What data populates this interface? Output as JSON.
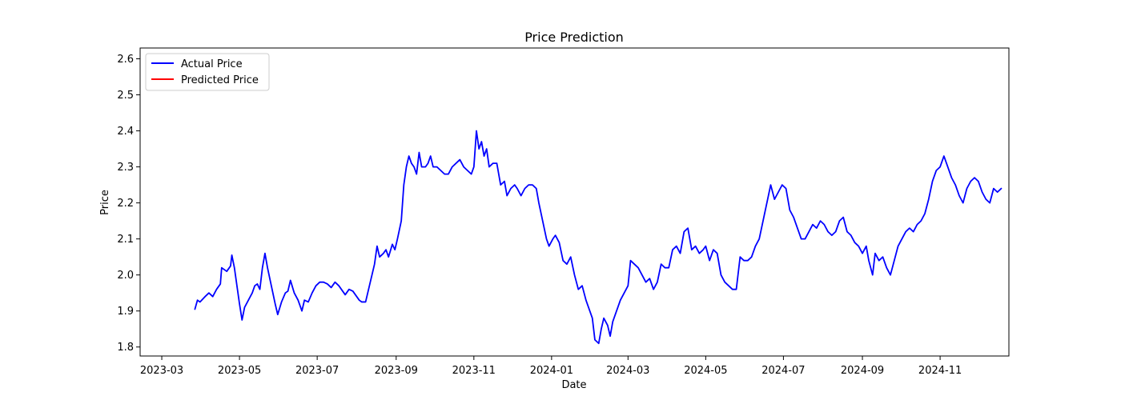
{
  "chart_data": {
    "type": "line",
    "title": "Price Prediction",
    "xlabel": "Date",
    "ylabel": "Price",
    "grid": false,
    "legend_position": "top-left",
    "xlim": [
      "2023-02-12",
      "2024-12-25"
    ],
    "ylim": [
      1.775,
      2.63
    ],
    "x_ticks": [
      "2023-03-01",
      "2023-05-01",
      "2023-07-01",
      "2023-09-01",
      "2023-11-01",
      "2024-01-01",
      "2024-03-01",
      "2024-05-01",
      "2024-07-01",
      "2024-09-01",
      "2024-11-01"
    ],
    "x_tick_labels": [
      "2023-03",
      "2023-05",
      "2023-07",
      "2023-09",
      "2023-11",
      "2024-01",
      "2024-03",
      "2024-05",
      "2024-07",
      "2024-09",
      "2024-11"
    ],
    "y_ticks": [
      1.8,
      1.9,
      2.0,
      2.1,
      2.2,
      2.3,
      2.4,
      2.5,
      2.6
    ],
    "y_tick_labels": [
      "1.8",
      "1.9",
      "2.0",
      "2.1",
      "2.2",
      "2.3",
      "2.4",
      "2.5",
      "2.6"
    ],
    "series": [
      {
        "name": "Actual Price",
        "color": "#0000ff",
        "points": [
          [
            "2023-03-27",
            1.905
          ],
          [
            "2023-03-29",
            1.93
          ],
          [
            "2023-03-31",
            1.925
          ],
          [
            "2023-04-04",
            1.94
          ],
          [
            "2023-04-07",
            1.95
          ],
          [
            "2023-04-10",
            1.94
          ],
          [
            "2023-04-13",
            1.96
          ],
          [
            "2023-04-16",
            1.975
          ],
          [
            "2023-04-17",
            2.02
          ],
          [
            "2023-04-19",
            2.015
          ],
          [
            "2023-04-21",
            2.01
          ],
          [
            "2023-04-24",
            2.025
          ],
          [
            "2023-04-25",
            2.055
          ],
          [
            "2023-04-27",
            2.02
          ],
          [
            "2023-04-29",
            1.97
          ],
          [
            "2023-05-01",
            1.92
          ],
          [
            "2023-05-03",
            1.875
          ],
          [
            "2023-05-05",
            1.91
          ],
          [
            "2023-05-08",
            1.93
          ],
          [
            "2023-05-11",
            1.95
          ],
          [
            "2023-05-13",
            1.97
          ],
          [
            "2023-05-15",
            1.975
          ],
          [
            "2023-05-17",
            1.96
          ],
          [
            "2023-05-19",
            2.02
          ],
          [
            "2023-05-21",
            2.06
          ],
          [
            "2023-05-23",
            2.02
          ],
          [
            "2023-05-26",
            1.97
          ],
          [
            "2023-05-29",
            1.92
          ],
          [
            "2023-05-31",
            1.89
          ],
          [
            "2023-06-03",
            1.925
          ],
          [
            "2023-06-06",
            1.95
          ],
          [
            "2023-06-08",
            1.955
          ],
          [
            "2023-06-10",
            1.985
          ],
          [
            "2023-06-13",
            1.95
          ],
          [
            "2023-06-16",
            1.93
          ],
          [
            "2023-06-19",
            1.9
          ],
          [
            "2023-06-21",
            1.93
          ],
          [
            "2023-06-24",
            1.925
          ],
          [
            "2023-06-27",
            1.95
          ],
          [
            "2023-06-30",
            1.97
          ],
          [
            "2023-07-03",
            1.98
          ],
          [
            "2023-07-06",
            1.98
          ],
          [
            "2023-07-09",
            1.975
          ],
          [
            "2023-07-12",
            1.965
          ],
          [
            "2023-07-15",
            1.98
          ],
          [
            "2023-07-18",
            1.97
          ],
          [
            "2023-07-21",
            1.955
          ],
          [
            "2023-07-23",
            1.945
          ],
          [
            "2023-07-26",
            1.96
          ],
          [
            "2023-07-29",
            1.955
          ],
          [
            "2023-08-01",
            1.94
          ],
          [
            "2023-08-03",
            1.93
          ],
          [
            "2023-08-05",
            1.925
          ],
          [
            "2023-08-08",
            1.925
          ],
          [
            "2023-08-11",
            1.97
          ],
          [
            "2023-08-13",
            2.0
          ],
          [
            "2023-08-15",
            2.03
          ],
          [
            "2023-08-17",
            2.08
          ],
          [
            "2023-08-19",
            2.05
          ],
          [
            "2023-08-22",
            2.06
          ],
          [
            "2023-08-24",
            2.07
          ],
          [
            "2023-08-26",
            2.05
          ],
          [
            "2023-08-29",
            2.085
          ],
          [
            "2023-08-31",
            2.07
          ],
          [
            "2023-09-02",
            2.1
          ],
          [
            "2023-09-05",
            2.15
          ],
          [
            "2023-09-07",
            2.25
          ],
          [
            "2023-09-09",
            2.3
          ],
          [
            "2023-09-11",
            2.33
          ],
          [
            "2023-09-13",
            2.31
          ],
          [
            "2023-09-15",
            2.3
          ],
          [
            "2023-09-17",
            2.28
          ],
          [
            "2023-09-19",
            2.34
          ],
          [
            "2023-09-21",
            2.3
          ],
          [
            "2023-09-24",
            2.3
          ],
          [
            "2023-09-26",
            2.31
          ],
          [
            "2023-09-28",
            2.33
          ],
          [
            "2023-09-30",
            2.3
          ],
          [
            "2023-10-03",
            2.3
          ],
          [
            "2023-10-06",
            2.29
          ],
          [
            "2023-10-09",
            2.28
          ],
          [
            "2023-10-12",
            2.28
          ],
          [
            "2023-10-15",
            2.3
          ],
          [
            "2023-10-18",
            2.31
          ],
          [
            "2023-10-21",
            2.32
          ],
          [
            "2023-10-24",
            2.3
          ],
          [
            "2023-10-27",
            2.29
          ],
          [
            "2023-10-30",
            2.28
          ],
          [
            "2023-11-01",
            2.3
          ],
          [
            "2023-11-03",
            2.4
          ],
          [
            "2023-11-05",
            2.35
          ],
          [
            "2023-11-07",
            2.37
          ],
          [
            "2023-11-09",
            2.33
          ],
          [
            "2023-11-11",
            2.35
          ],
          [
            "2023-11-13",
            2.3
          ],
          [
            "2023-11-16",
            2.31
          ],
          [
            "2023-11-19",
            2.31
          ],
          [
            "2023-11-22",
            2.25
          ],
          [
            "2023-11-25",
            2.26
          ],
          [
            "2023-11-27",
            2.22
          ],
          [
            "2023-11-30",
            2.24
          ],
          [
            "2023-12-03",
            2.25
          ],
          [
            "2023-12-05",
            2.24
          ],
          [
            "2023-12-08",
            2.22
          ],
          [
            "2023-12-11",
            2.24
          ],
          [
            "2023-12-14",
            2.25
          ],
          [
            "2023-12-17",
            2.25
          ],
          [
            "2023-12-20",
            2.24
          ],
          [
            "2023-12-22",
            2.2
          ],
          [
            "2023-12-25",
            2.15
          ],
          [
            "2023-12-28",
            2.1
          ],
          [
            "2023-12-30",
            2.08
          ],
          [
            "2024-01-02",
            2.1
          ],
          [
            "2024-01-04",
            2.11
          ],
          [
            "2024-01-07",
            2.09
          ],
          [
            "2024-01-10",
            2.04
          ],
          [
            "2024-01-13",
            2.03
          ],
          [
            "2024-01-16",
            2.05
          ],
          [
            "2024-01-19",
            2.0
          ],
          [
            "2024-01-22",
            1.96
          ],
          [
            "2024-01-25",
            1.97
          ],
          [
            "2024-01-28",
            1.93
          ],
          [
            "2024-01-31",
            1.9
          ],
          [
            "2024-02-02",
            1.88
          ],
          [
            "2024-02-04",
            1.82
          ],
          [
            "2024-02-07",
            1.81
          ],
          [
            "2024-02-09",
            1.85
          ],
          [
            "2024-02-11",
            1.88
          ],
          [
            "2024-02-14",
            1.86
          ],
          [
            "2024-02-16",
            1.83
          ],
          [
            "2024-02-18",
            1.87
          ],
          [
            "2024-02-21",
            1.9
          ],
          [
            "2024-02-24",
            1.93
          ],
          [
            "2024-02-27",
            1.95
          ],
          [
            "2024-03-01",
            1.97
          ],
          [
            "2024-03-03",
            2.04
          ],
          [
            "2024-03-06",
            2.03
          ],
          [
            "2024-03-09",
            2.02
          ],
          [
            "2024-03-12",
            2.0
          ],
          [
            "2024-03-15",
            1.98
          ],
          [
            "2024-03-18",
            1.99
          ],
          [
            "2024-03-21",
            1.96
          ],
          [
            "2024-03-24",
            1.98
          ],
          [
            "2024-03-27",
            2.03
          ],
          [
            "2024-03-30",
            2.02
          ],
          [
            "2024-04-02",
            2.02
          ],
          [
            "2024-04-05",
            2.07
          ],
          [
            "2024-04-08",
            2.08
          ],
          [
            "2024-04-11",
            2.06
          ],
          [
            "2024-04-14",
            2.12
          ],
          [
            "2024-04-17",
            2.13
          ],
          [
            "2024-04-20",
            2.07
          ],
          [
            "2024-04-23",
            2.08
          ],
          [
            "2024-04-26",
            2.06
          ],
          [
            "2024-04-29",
            2.07
          ],
          [
            "2024-05-01",
            2.08
          ],
          [
            "2024-05-04",
            2.04
          ],
          [
            "2024-05-07",
            2.07
          ],
          [
            "2024-05-10",
            2.06
          ],
          [
            "2024-05-13",
            2.0
          ],
          [
            "2024-05-16",
            1.98
          ],
          [
            "2024-05-19",
            1.97
          ],
          [
            "2024-05-22",
            1.96
          ],
          [
            "2024-05-25",
            1.96
          ],
          [
            "2024-05-28",
            2.05
          ],
          [
            "2024-05-31",
            2.04
          ],
          [
            "2024-06-03",
            2.04
          ],
          [
            "2024-06-06",
            2.05
          ],
          [
            "2024-06-09",
            2.08
          ],
          [
            "2024-06-12",
            2.1
          ],
          [
            "2024-06-15",
            2.15
          ],
          [
            "2024-06-18",
            2.2
          ],
          [
            "2024-06-21",
            2.25
          ],
          [
            "2024-06-24",
            2.21
          ],
          [
            "2024-06-27",
            2.23
          ],
          [
            "2024-06-30",
            2.25
          ],
          [
            "2024-07-03",
            2.24
          ],
          [
            "2024-07-06",
            2.18
          ],
          [
            "2024-07-09",
            2.16
          ],
          [
            "2024-07-12",
            2.13
          ],
          [
            "2024-07-15",
            2.1
          ],
          [
            "2024-07-18",
            2.1
          ],
          [
            "2024-07-21",
            2.12
          ],
          [
            "2024-07-24",
            2.14
          ],
          [
            "2024-07-27",
            2.13
          ],
          [
            "2024-07-30",
            2.15
          ],
          [
            "2024-08-02",
            2.14
          ],
          [
            "2024-08-05",
            2.12
          ],
          [
            "2024-08-08",
            2.11
          ],
          [
            "2024-08-11",
            2.12
          ],
          [
            "2024-08-14",
            2.15
          ],
          [
            "2024-08-17",
            2.16
          ],
          [
            "2024-08-20",
            2.12
          ],
          [
            "2024-08-23",
            2.11
          ],
          [
            "2024-08-26",
            2.09
          ],
          [
            "2024-08-29",
            2.08
          ],
          [
            "2024-09-01",
            2.06
          ],
          [
            "2024-09-04",
            2.08
          ],
          [
            "2024-09-06",
            2.04
          ],
          [
            "2024-09-09",
            2.0
          ],
          [
            "2024-09-11",
            2.06
          ],
          [
            "2024-09-14",
            2.04
          ],
          [
            "2024-09-17",
            2.05
          ],
          [
            "2024-09-20",
            2.02
          ],
          [
            "2024-09-23",
            2.0
          ],
          [
            "2024-09-26",
            2.04
          ],
          [
            "2024-09-29",
            2.08
          ],
          [
            "2024-10-02",
            2.1
          ],
          [
            "2024-10-05",
            2.12
          ],
          [
            "2024-10-08",
            2.13
          ],
          [
            "2024-10-11",
            2.12
          ],
          [
            "2024-10-14",
            2.14
          ],
          [
            "2024-10-17",
            2.15
          ],
          [
            "2024-10-20",
            2.17
          ],
          [
            "2024-10-23",
            2.21
          ],
          [
            "2024-10-26",
            2.26
          ],
          [
            "2024-10-29",
            2.29
          ],
          [
            "2024-11-01",
            2.3
          ],
          [
            "2024-11-04",
            2.33
          ],
          [
            "2024-11-07",
            2.3
          ],
          [
            "2024-11-10",
            2.27
          ],
          [
            "2024-11-13",
            2.25
          ],
          [
            "2024-11-16",
            2.22
          ],
          [
            "2024-11-19",
            2.2
          ],
          [
            "2024-11-22",
            2.24
          ],
          [
            "2024-11-25",
            2.26
          ],
          [
            "2024-11-28",
            2.27
          ],
          [
            "2024-12-01",
            2.26
          ],
          [
            "2024-12-04",
            2.23
          ],
          [
            "2024-12-07",
            2.21
          ],
          [
            "2024-12-10",
            2.2
          ],
          [
            "2024-12-13",
            2.24
          ],
          [
            "2024-12-16",
            2.23
          ],
          [
            "2024-12-19",
            2.24
          ]
        ]
      },
      {
        "name": "Predicted Price",
        "color": "#ff0000",
        "points": []
      }
    ]
  },
  "legend": {
    "items": [
      {
        "label": "Actual Price",
        "color": "#0000ff"
      },
      {
        "label": "Predicted Price",
        "color": "#ff0000"
      }
    ]
  }
}
